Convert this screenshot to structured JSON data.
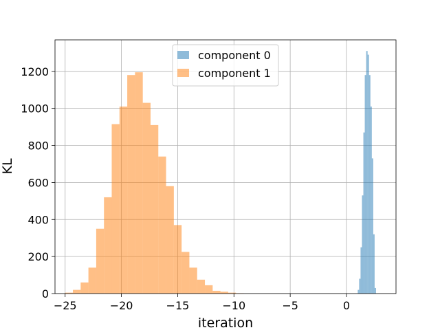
{
  "chart_data": {
    "type": "histogram",
    "title": "",
    "xlabel": "iteration",
    "ylabel": "KL",
    "xlim": [
      -25.9,
      4.4
    ],
    "ylim": [
      0,
      1370
    ],
    "xticks": [
      -25,
      -20,
      -15,
      -10,
      -5,
      0
    ],
    "yticks": [
      0,
      200,
      400,
      600,
      800,
      1000,
      1200
    ],
    "grid": true,
    "legend_position": "top-center",
    "series": [
      {
        "name": "component 0",
        "color": "#1f77b4",
        "opacity": 0.5,
        "bin_edges": [
          1.0,
          1.125,
          1.25,
          1.375,
          1.5,
          1.625,
          1.75,
          1.875,
          2.0,
          2.125,
          2.25,
          2.375,
          2.5,
          2.625
        ],
        "counts": [
          20,
          80,
          250,
          530,
          870,
          1180,
          1310,
          1290,
          1180,
          1010,
          730,
          320,
          30
        ]
      },
      {
        "name": "component 1",
        "color": "#ff7f0e",
        "opacity": 0.5,
        "bin_edges": [
          -25.0,
          -24.31,
          -23.62,
          -22.93,
          -22.24,
          -21.55,
          -20.86,
          -20.17,
          -19.48,
          -18.79,
          -18.1,
          -17.41,
          -16.72,
          -16.03,
          -15.34,
          -14.65,
          -13.96,
          -13.27,
          -12.58,
          -11.89,
          -11.2,
          -10.51,
          -9.82,
          -9.13
        ],
        "counts": [
          5,
          20,
          60,
          140,
          350,
          520,
          915,
          1010,
          1180,
          1195,
          1030,
          910,
          740,
          580,
          370,
          225,
          140,
          75,
          45,
          15,
          10,
          5,
          2
        ]
      }
    ]
  }
}
